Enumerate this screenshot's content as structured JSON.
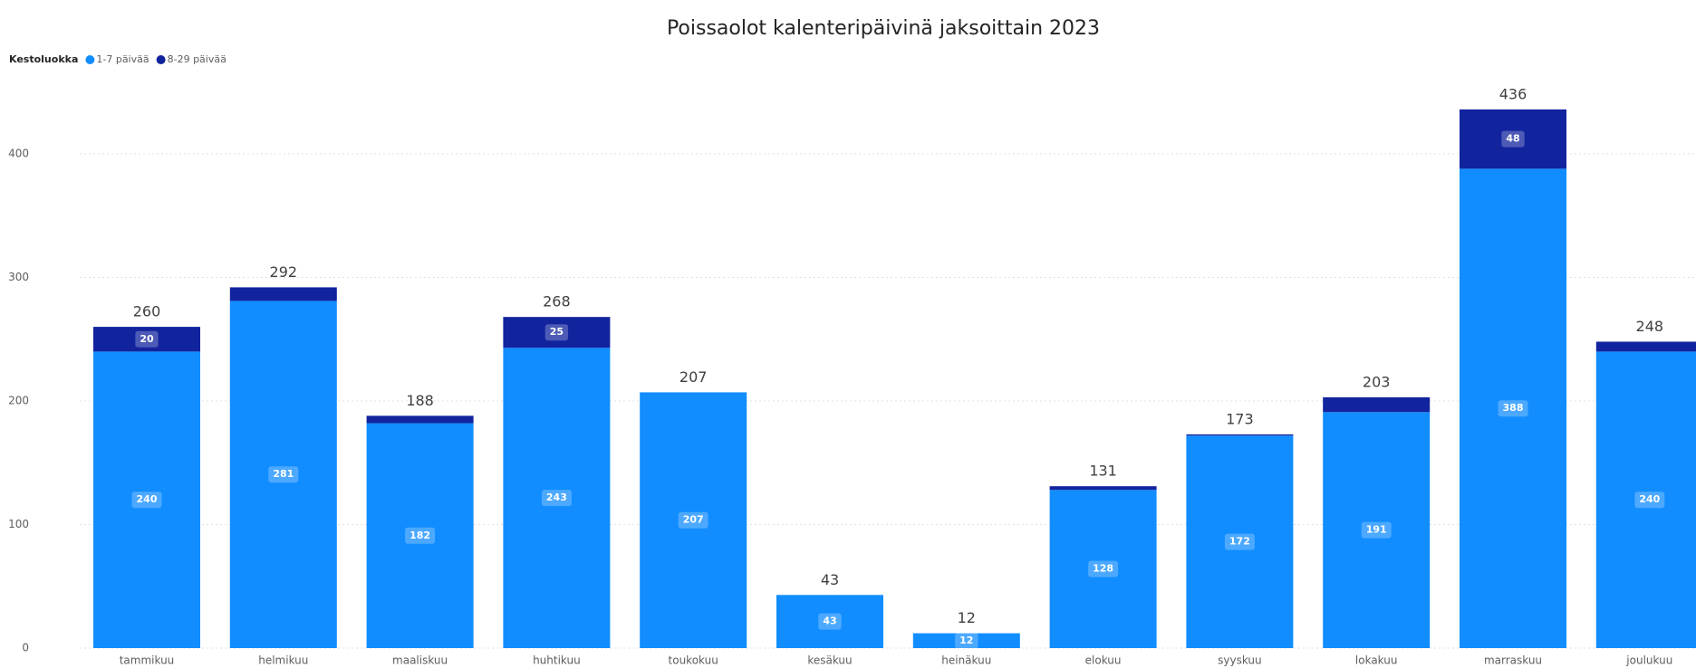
{
  "chart_data": {
    "type": "stacked_bar",
    "title": "Poissaolot kalenteripäivinä jaksoittain 2023",
    "legend_title": "Kestoluokka",
    "legend": "top-left",
    "categories": [
      "tammikuu",
      "helmikuu",
      "maaliskuu",
      "huhtikuu",
      "toukokuu",
      "kesäkuu",
      "heinäkuu",
      "elokuu",
      "syyskuu",
      "lokakuu",
      "marraskuu",
      "joulukuu"
    ],
    "series": [
      {
        "name": "1-7 päivää",
        "color": "#118DFF",
        "values": [
          240,
          281,
          182,
          243,
          207,
          43,
          12,
          128,
          172,
          191,
          388,
          240
        ]
      },
      {
        "name": "8-29 päivää",
        "color": "#12239E",
        "values": [
          20,
          11,
          6,
          25,
          0,
          0,
          0,
          3,
          1,
          12,
          48,
          8
        ],
        "value_labels": [
          "20",
          null,
          null,
          "25",
          null,
          null,
          null,
          null,
          null,
          null,
          "48",
          null
        ]
      }
    ],
    "totals": [
      260,
      292,
      188,
      268,
      207,
      43,
      12,
      131,
      173,
      203,
      436,
      248
    ],
    "ylim": [
      0,
      440
    ],
    "yticks": [
      0,
      100,
      200,
      300,
      400
    ],
    "grid": true
  }
}
